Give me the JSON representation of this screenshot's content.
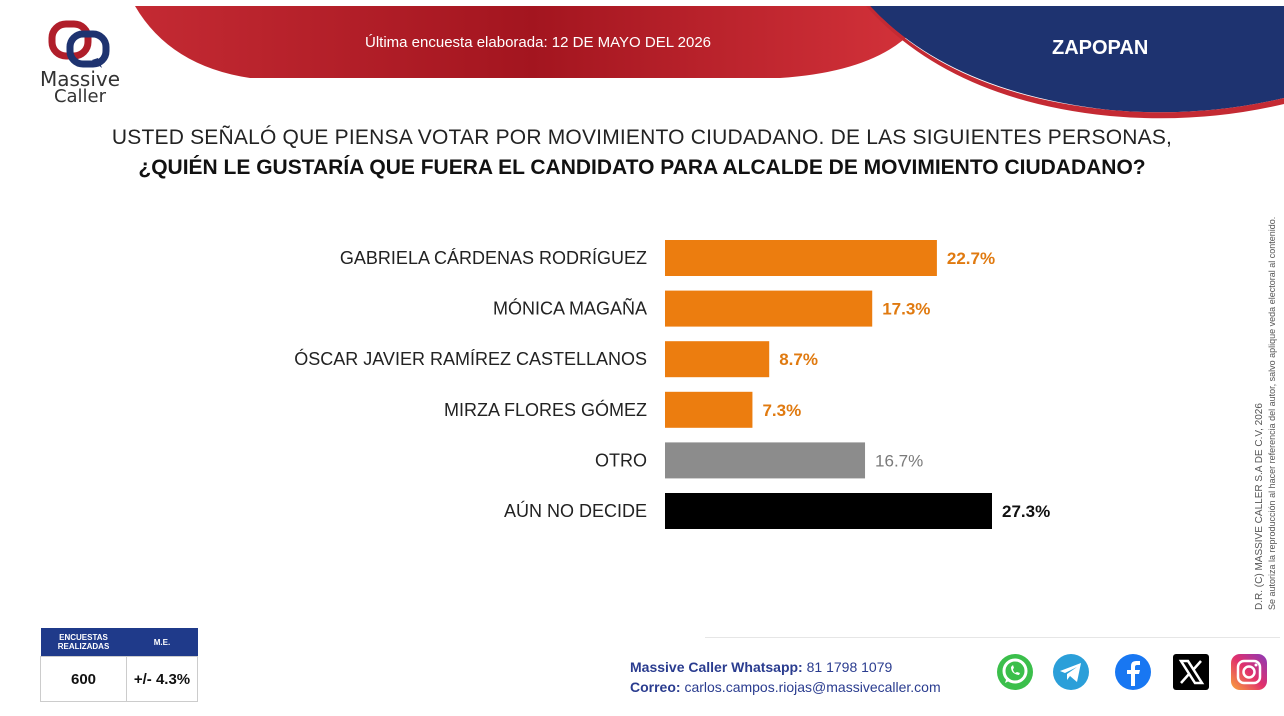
{
  "header": {
    "brand_line1": "Massive",
    "brand_line2": "Caller",
    "survey_date": "Última encuesta elaborada: 12 DE MAYO DEL 2026",
    "region": "ZAPOPAN"
  },
  "question": {
    "line1": "USTED SEÑALÓ QUE PIENSA VOTAR POR MOVIMIENTO CIUDADANO. DE LAS SIGUIENTES PERSONAS,",
    "line2": "¿QUIÉN LE GUSTARÍA QUE FUERA EL CANDIDATO PARA ALCALDE DE MOVIMIENTO CIUDADANO?"
  },
  "chart_data": {
    "type": "bar",
    "orientation": "horizontal",
    "categories": [
      "GABRIELA CÁRDENAS RODRÍGUEZ",
      "MÓNICA MAGAÑA",
      "ÓSCAR JAVIER RAMÍREZ CASTELLANOS",
      "MIRZA FLORES GÓMEZ",
      "OTRO",
      "AÚN NO DECIDE"
    ],
    "values": [
      22.7,
      17.3,
      8.7,
      7.3,
      16.7,
      27.3
    ],
    "value_labels": [
      "22.7%",
      "17.3%",
      "8.7%",
      "7.3%",
      "16.7%",
      "27.3%"
    ],
    "colors": [
      "#ec7d0f",
      "#ec7d0f",
      "#ec7d0f",
      "#ec7d0f",
      "#8c8c8c",
      "#000000"
    ],
    "label_colors": [
      "#e07a10",
      "#e07a10",
      "#e07a10",
      "#e07a10",
      "#7a7a7a",
      "#111111"
    ],
    "xlim": [
      0,
      30
    ],
    "grid": false,
    "title": "",
    "xlabel": "",
    "ylabel": ""
  },
  "copyright": {
    "line1": "D.R. (C) MASSIVE CALLER S.A DE C.V, 2026",
    "line2": "Se autoriza la reproducción al hacer referencia del autor, salvo aplique veda electoral al contenido."
  },
  "stats": {
    "surveys_label": "ENCUESTAS REALIZADAS",
    "me_label": "M.E.",
    "surveys_value": "600",
    "me_value": "+/- 4.3%"
  },
  "contact": {
    "whatsapp_label": "Massive Caller Whatsapp:",
    "whatsapp_number": "81 1798 1079",
    "email_label": "Correo:",
    "email": "carlos.campos.riojas@massivecaller.com"
  },
  "colors": {
    "header_red": "#b01e2a",
    "header_navy": "#1e3370",
    "accent_orange": "#ec7d0f",
    "table_blue": "#1f3a8a"
  },
  "social_icons": [
    "whatsapp-icon",
    "telegram-icon",
    "facebook-icon",
    "x-icon",
    "instagram-icon"
  ]
}
